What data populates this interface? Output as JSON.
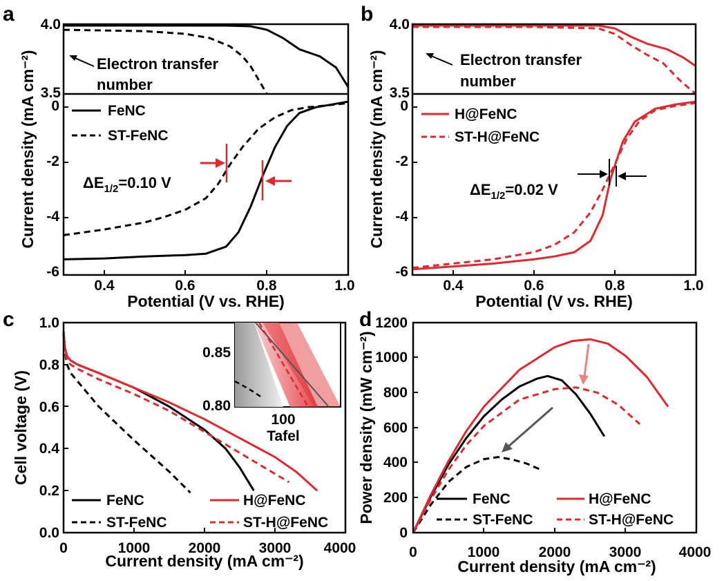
{
  "chart_data": [
    {
      "panel": "a",
      "type": "line",
      "ylabel": "Current density (mA cm⁻²)",
      "xlabel": "Potential (V vs. RHE)",
      "xlim": [
        0.3,
        1.0
      ],
      "x_ticks": [
        "0.4",
        "0.6",
        "0.8",
        "1.0"
      ],
      "top": {
        "ylim": [
          3.5,
          4.0
        ],
        "y_ticks": [
          "4.0",
          "3.5"
        ],
        "annotation": [
          "Electron transfer",
          "number"
        ],
        "series": [
          {
            "name": "FeNC",
            "style": "solid",
            "color": "#000000",
            "x": [
              0.3,
              0.5,
              0.7,
              0.76,
              0.8,
              0.84,
              0.88,
              0.93,
              0.97,
              1.0
            ],
            "y": [
              3.99,
              3.99,
              3.99,
              3.985,
              3.96,
              3.9,
              3.82,
              3.77,
              3.69,
              3.55
            ]
          },
          {
            "name": "ST-FeNC",
            "style": "dashed",
            "color": "#000000",
            "x": [
              0.3,
              0.5,
              0.6,
              0.66,
              0.71,
              0.74,
              0.76,
              0.78,
              0.8
            ],
            "y": [
              3.96,
              3.95,
              3.93,
              3.9,
              3.84,
              3.77,
              3.7,
              3.6,
              3.5
            ]
          }
        ]
      },
      "bottom": {
        "ylim": [
          -6,
          0.2
        ],
        "y_ticks": [
          "0",
          "-2",
          "-4",
          "-6"
        ],
        "legend": [
          "FeNC",
          "ST-FeNC"
        ],
        "annotation": "ΔE",
        "annotation_sub": "1/2",
        "annotation_value": "=0.10 V",
        "series": [
          {
            "name": "FeNC",
            "style": "solid",
            "color": "#000000",
            "x": [
              0.3,
              0.4,
              0.5,
              0.6,
              0.65,
              0.7,
              0.73,
              0.76,
              0.79,
              0.82,
              0.85,
              0.88,
              0.92,
              0.96,
              1.0
            ],
            "y": [
              -5.45,
              -5.42,
              -5.35,
              -5.3,
              -5.25,
              -5.0,
              -4.5,
              -3.6,
              -2.5,
              -1.5,
              -0.75,
              -0.3,
              -0.1,
              0.0,
              0.1
            ]
          },
          {
            "name": "ST-FeNC",
            "style": "dashed",
            "color": "#000000",
            "x": [
              0.3,
              0.4,
              0.5,
              0.55,
              0.6,
              0.65,
              0.68,
              0.71,
              0.74,
              0.78,
              0.82,
              0.86,
              0.9,
              0.95,
              1.0
            ],
            "y": [
              -4.6,
              -4.4,
              -4.15,
              -3.95,
              -3.7,
              -3.3,
              -2.8,
              -2.1,
              -1.5,
              -0.85,
              -0.45,
              -0.2,
              -0.1,
              -0.03,
              0.05
            ]
          }
        ],
        "half_wave": [
          0.7,
          0.8
        ]
      }
    },
    {
      "panel": "b",
      "type": "line",
      "ylabel": "Current density (mA cm⁻²)",
      "xlabel": "Potential (V vs. RHE)",
      "xlim": [
        0.3,
        1.0
      ],
      "x_ticks": [
        "0.4",
        "0.6",
        "0.8",
        "1.0"
      ],
      "top": {
        "ylim": [
          3.5,
          4.0
        ],
        "y_ticks": [
          "4.0",
          "3.5"
        ],
        "annotation": [
          "Electron transfer",
          "number"
        ],
        "series": [
          {
            "name": "H@FeNC",
            "style": "solid",
            "color": "#e0282e",
            "x": [
              0.3,
              0.6,
              0.76,
              0.8,
              0.84,
              0.88,
              0.93,
              0.97,
              1.0
            ],
            "y": [
              3.99,
              3.99,
              3.99,
              3.97,
              3.91,
              3.86,
              3.82,
              3.76,
              3.7
            ]
          },
          {
            "name": "ST-H@FeNC",
            "style": "dashed",
            "color": "#e0282e",
            "x": [
              0.3,
              0.6,
              0.76,
              0.8,
              0.84,
              0.88,
              0.92,
              0.96,
              1.0
            ],
            "y": [
              3.98,
              3.98,
              3.97,
              3.93,
              3.85,
              3.78,
              3.72,
              3.6,
              3.5
            ]
          }
        ]
      },
      "bottom": {
        "ylim": [
          -6,
          0.2
        ],
        "y_ticks": [
          "0",
          "-2",
          "-4",
          "-6"
        ],
        "legend": [
          "H@FeNC",
          "ST-H@FeNC"
        ],
        "annotation": "ΔE",
        "annotation_sub": "1/2",
        "annotation_value": "=0.02 V",
        "series": [
          {
            "name": "H@FeNC",
            "style": "solid",
            "color": "#e0282e",
            "x": [
              0.3,
              0.4,
              0.5,
              0.6,
              0.65,
              0.7,
              0.74,
              0.77,
              0.79,
              0.82,
              0.85,
              0.9,
              0.95,
              1.0
            ],
            "y": [
              -5.8,
              -5.7,
              -5.6,
              -5.45,
              -5.35,
              -5.2,
              -4.8,
              -3.9,
              -2.6,
              -1.3,
              -0.6,
              -0.15,
              0.0,
              0.1
            ]
          },
          {
            "name": "ST-H@FeNC",
            "style": "dashed",
            "color": "#e0282e",
            "x": [
              0.3,
              0.4,
              0.5,
              0.6,
              0.65,
              0.7,
              0.74,
              0.77,
              0.8,
              0.83,
              0.86,
              0.9,
              0.95,
              1.0
            ],
            "y": [
              -5.75,
              -5.6,
              -5.45,
              -5.2,
              -4.95,
              -4.5,
              -3.8,
              -3.0,
              -2.1,
              -1.2,
              -0.6,
              -0.2,
              -0.05,
              0.05
            ]
          }
        ],
        "half_wave": [
          0.78,
          0.8
        ]
      }
    },
    {
      "panel": "c",
      "type": "line",
      "ylabel": "Cell voltage (V)",
      "xlabel": "Current density (mA cm⁻²)",
      "xlim": [
        0,
        4000
      ],
      "ylim": [
        0.0,
        1.0
      ],
      "x_ticks": [
        "0",
        "1000",
        "2000",
        "3000",
        "4000"
      ],
      "y_ticks": [
        "0.0",
        "0.2",
        "0.4",
        "0.6",
        "0.8",
        "1.0"
      ],
      "legend": [
        "FeNC",
        "ST-FeNC",
        "H@FeNC",
        "ST-H@FeNC"
      ],
      "series": [
        {
          "name": "FeNC",
          "style": "solid",
          "color": "#000000",
          "x": [
            0,
            20,
            50,
            100,
            200,
            500,
            1000,
            1500,
            2000,
            2300,
            2500,
            2700
          ],
          "y": [
            0.96,
            0.88,
            0.84,
            0.82,
            0.8,
            0.76,
            0.69,
            0.6,
            0.49,
            0.4,
            0.31,
            0.2
          ]
        },
        {
          "name": "ST-FeNC",
          "style": "dashed",
          "color": "#000000",
          "x": [
            0,
            20,
            50,
            100,
            200,
            500,
            1000,
            1500,
            1800
          ],
          "y": [
            0.95,
            0.86,
            0.8,
            0.76,
            0.72,
            0.6,
            0.44,
            0.29,
            0.19
          ]
        },
        {
          "name": "H@FeNC",
          "style": "solid",
          "color": "#e0282e",
          "x": [
            0,
            20,
            50,
            100,
            200,
            500,
            1000,
            1500,
            2000,
            2500,
            3000,
            3300,
            3600
          ],
          "y": [
            0.96,
            0.88,
            0.84,
            0.82,
            0.8,
            0.76,
            0.69,
            0.62,
            0.54,
            0.45,
            0.36,
            0.29,
            0.2
          ]
        },
        {
          "name": "ST-H@FeNC",
          "style": "dashed",
          "color": "#e0282e",
          "x": [
            0,
            20,
            50,
            100,
            200,
            500,
            1000,
            1500,
            2000,
            2500,
            2800,
            3200
          ],
          "y": [
            0.95,
            0.86,
            0.82,
            0.8,
            0.78,
            0.73,
            0.66,
            0.58,
            0.48,
            0.38,
            0.32,
            0.24
          ]
        }
      ],
      "inset": {
        "xlabel": "Tafel",
        "x_tick": "100",
        "ylim": [
          0.8,
          0.87
        ],
        "y_ticks": [
          "0.85",
          "0.80"
        ]
      }
    },
    {
      "panel": "d",
      "type": "line",
      "ylabel": "Power density (mW cm⁻²)",
      "xlabel": "Current density (mA cm⁻²)",
      "xlim": [
        0,
        4000
      ],
      "ylim": [
        0,
        1200
      ],
      "x_ticks": [
        "0",
        "1000",
        "2000",
        "3000",
        "4000"
      ],
      "y_ticks": [
        "0",
        "200",
        "400",
        "600",
        "800",
        "1000",
        "1200"
      ],
      "legend": [
        "FeNC",
        "ST-FeNC",
        "H@FeNC",
        "ST-H@FeNC"
      ],
      "series": [
        {
          "name": "FeNC",
          "style": "solid",
          "color": "#000000",
          "x": [
            0,
            250,
            500,
            750,
            1000,
            1250,
            1500,
            1750,
            1900,
            2100,
            2300,
            2500,
            2700
          ],
          "y": [
            0,
            205,
            390,
            540,
            665,
            760,
            835,
            880,
            895,
            870,
            790,
            680,
            550
          ]
        },
        {
          "name": "ST-FeNC",
          "style": "dashed",
          "color": "#000000",
          "x": [
            0,
            250,
            500,
            750,
            1000,
            1200,
            1400,
            1600,
            1800
          ],
          "y": [
            0,
            160,
            290,
            375,
            420,
            432,
            418,
            395,
            360
          ]
        },
        {
          "name": "H@FeNC",
          "style": "solid",
          "color": "#e0282e",
          "x": [
            0,
            250,
            500,
            750,
            1000,
            1500,
            2000,
            2250,
            2500,
            2750,
            3000,
            3300,
            3600
          ],
          "y": [
            0,
            215,
            410,
            580,
            720,
            930,
            1060,
            1095,
            1105,
            1080,
            1010,
            890,
            720
          ]
        },
        {
          "name": "ST-H@FeNC",
          "style": "dashed",
          "color": "#e0282e",
          "x": [
            0,
            250,
            500,
            750,
            1000,
            1500,
            2000,
            2300,
            2600,
            2900,
            3200
          ],
          "y": [
            0,
            190,
            360,
            500,
            610,
            760,
            820,
            830,
            800,
            730,
            620
          ]
        }
      ]
    }
  ]
}
